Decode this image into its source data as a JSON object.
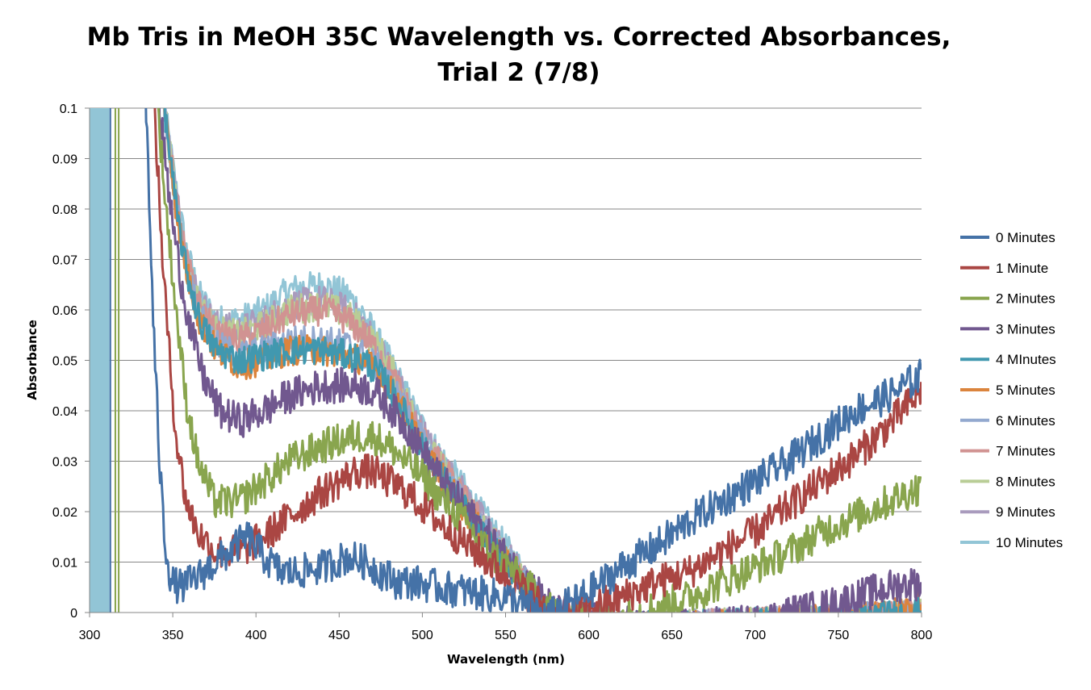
{
  "chart_data": {
    "type": "line",
    "title_line1": "Mb Tris in MeOH 35C Wavelength vs. Corrected Absorbances,",
    "title_line2": "Trial 2 (7/8)",
    "xlabel": "Wavelength (nm)",
    "ylabel": "Absorbance",
    "xlim": [
      300,
      800
    ],
    "ylim": [
      0,
      0.1
    ],
    "x_ticks": [
      "300",
      "350",
      "400",
      "450",
      "500",
      "550",
      "600",
      "650",
      "700",
      "750",
      "800"
    ],
    "y_ticks": [
      "0",
      "0.01",
      "0.02",
      "0.03",
      "0.04",
      "0.05",
      "0.06",
      "0.07",
      "0.08",
      "0.09",
      "0.1"
    ],
    "grid": "horizontal",
    "legend_position": "right",
    "series": [
      {
        "name": "0 Minutes",
        "color": "#4572A7",
        "noise": 0.0035,
        "points": [
          [
            334,
            0.1
          ],
          [
            338,
            0.06
          ],
          [
            342,
            0.03
          ],
          [
            345,
            0.015
          ],
          [
            349,
            0.006
          ],
          [
            355,
            0.005
          ],
          [
            365,
            0.007
          ],
          [
            380,
            0.011
          ],
          [
            395,
            0.015
          ],
          [
            405,
            0.011
          ],
          [
            415,
            0.008
          ],
          [
            425,
            0.008
          ],
          [
            440,
            0.009
          ],
          [
            455,
            0.011
          ],
          [
            465,
            0.01
          ],
          [
            475,
            0.008
          ],
          [
            485,
            0.006
          ],
          [
            495,
            0.006
          ],
          [
            510,
            0.005
          ],
          [
            530,
            0.004
          ],
          [
            550,
            0.003
          ],
          [
            565,
            0.001
          ],
          [
            575,
            -0.001
          ],
          [
            590,
            0.002
          ],
          [
            600,
            0.004
          ],
          [
            620,
            0.009
          ],
          [
            640,
            0.013
          ],
          [
            660,
            0.018
          ],
          [
            680,
            0.022
          ],
          [
            700,
            0.026
          ],
          [
            720,
            0.03
          ],
          [
            740,
            0.035
          ],
          [
            760,
            0.04
          ],
          [
            780,
            0.043
          ],
          [
            800,
            0.047
          ]
        ]
      },
      {
        "name": "1 Minute",
        "color": "#AA4643",
        "noise": 0.0035,
        "points": [
          [
            339,
            0.1
          ],
          [
            343,
            0.075
          ],
          [
            347,
            0.055
          ],
          [
            352,
            0.035
          ],
          [
            358,
            0.022
          ],
          [
            365,
            0.016
          ],
          [
            375,
            0.012
          ],
          [
            390,
            0.012
          ],
          [
            405,
            0.015
          ],
          [
            420,
            0.019
          ],
          [
            440,
            0.024
          ],
          [
            460,
            0.028
          ],
          [
            470,
            0.028
          ],
          [
            480,
            0.026
          ],
          [
            490,
            0.024
          ],
          [
            500,
            0.021
          ],
          [
            510,
            0.018
          ],
          [
            525,
            0.014
          ],
          [
            540,
            0.01
          ],
          [
            555,
            0.006
          ],
          [
            570,
            0.002
          ],
          [
            580,
            -0.001
          ],
          [
            600,
            0.001
          ],
          [
            620,
            0.003
          ],
          [
            640,
            0.006
          ],
          [
            660,
            0.008
          ],
          [
            680,
            0.012
          ],
          [
            700,
            0.016
          ],
          [
            720,
            0.021
          ],
          [
            740,
            0.026
          ],
          [
            760,
            0.031
          ],
          [
            780,
            0.037
          ],
          [
            800,
            0.044
          ]
        ]
      },
      {
        "name": "2 Minutes",
        "color": "#89A54E",
        "noise": 0.0035,
        "points": [
          [
            341,
            0.1
          ],
          [
            346,
            0.08
          ],
          [
            352,
            0.06
          ],
          [
            358,
            0.042
          ],
          [
            365,
            0.03
          ],
          [
            375,
            0.022
          ],
          [
            390,
            0.022
          ],
          [
            405,
            0.026
          ],
          [
            420,
            0.03
          ],
          [
            440,
            0.033
          ],
          [
            460,
            0.035
          ],
          [
            470,
            0.035
          ],
          [
            480,
            0.033
          ],
          [
            490,
            0.03
          ],
          [
            500,
            0.027
          ],
          [
            510,
            0.023
          ],
          [
            525,
            0.018
          ],
          [
            540,
            0.012
          ],
          [
            555,
            0.008
          ],
          [
            570,
            0.003
          ],
          [
            580,
            0.0
          ],
          [
            600,
            -0.001
          ],
          [
            620,
            -0.001
          ],
          [
            640,
            0.001
          ],
          [
            660,
            0.003
          ],
          [
            680,
            0.006
          ],
          [
            700,
            0.009
          ],
          [
            720,
            0.012
          ],
          [
            740,
            0.016
          ],
          [
            760,
            0.019
          ],
          [
            780,
            0.022
          ],
          [
            800,
            0.025
          ]
        ]
      },
      {
        "name": "3 Minutes",
        "color": "#71588F",
        "noise": 0.0035,
        "points": [
          [
            342,
            0.1
          ],
          [
            348,
            0.082
          ],
          [
            354,
            0.068
          ],
          [
            360,
            0.057
          ],
          [
            368,
            0.047
          ],
          [
            378,
            0.04
          ],
          [
            390,
            0.038
          ],
          [
            405,
            0.04
          ],
          [
            420,
            0.043
          ],
          [
            440,
            0.045
          ],
          [
            460,
            0.045
          ],
          [
            470,
            0.044
          ],
          [
            480,
            0.041
          ],
          [
            490,
            0.037
          ],
          [
            500,
            0.032
          ],
          [
            510,
            0.027
          ],
          [
            525,
            0.021
          ],
          [
            540,
            0.015
          ],
          [
            555,
            0.009
          ],
          [
            570,
            0.004
          ],
          [
            580,
            0.0
          ],
          [
            640,
            -0.003
          ],
          [
            700,
            -0.002
          ],
          [
            720,
            0.0
          ],
          [
            740,
            0.001
          ],
          [
            760,
            0.003
          ],
          [
            780,
            0.005
          ],
          [
            800,
            0.006
          ]
        ]
      },
      {
        "name": "4 MInutes",
        "color": "#4198AF",
        "noise": 0.003,
        "points": [
          [
            345,
            0.1
          ],
          [
            352,
            0.08
          ],
          [
            358,
            0.068
          ],
          [
            366,
            0.058
          ],
          [
            376,
            0.052
          ],
          [
            390,
            0.05
          ],
          [
            405,
            0.051
          ],
          [
            420,
            0.052
          ],
          [
            440,
            0.052
          ],
          [
            455,
            0.051
          ],
          [
            465,
            0.05
          ],
          [
            475,
            0.047
          ],
          [
            485,
            0.042
          ],
          [
            495,
            0.036
          ],
          [
            505,
            0.03
          ],
          [
            520,
            0.023
          ],
          [
            535,
            0.016
          ],
          [
            550,
            0.01
          ],
          [
            565,
            0.004
          ],
          [
            575,
            -0.001
          ],
          [
            600,
            -0.003
          ],
          [
            700,
            -0.002
          ],
          [
            760,
            -0.001
          ],
          [
            800,
            0.0
          ]
        ]
      },
      {
        "name": "5 Minutes",
        "color": "#DB843D",
        "noise": 0.003,
        "points": [
          [
            345,
            0.1
          ],
          [
            352,
            0.08
          ],
          [
            358,
            0.068
          ],
          [
            366,
            0.058
          ],
          [
            376,
            0.052
          ],
          [
            390,
            0.049
          ],
          [
            405,
            0.05
          ],
          [
            420,
            0.052
          ],
          [
            440,
            0.052
          ],
          [
            455,
            0.051
          ],
          [
            465,
            0.05
          ],
          [
            475,
            0.047
          ],
          [
            485,
            0.042
          ],
          [
            495,
            0.036
          ],
          [
            505,
            0.03
          ],
          [
            520,
            0.023
          ],
          [
            535,
            0.016
          ],
          [
            550,
            0.01
          ],
          [
            565,
            0.004
          ],
          [
            575,
            -0.001
          ],
          [
            600,
            -0.003
          ],
          [
            700,
            -0.002
          ],
          [
            760,
            -0.001
          ],
          [
            800,
            0.001
          ]
        ]
      },
      {
        "name": "6 Minutes",
        "color": "#93A9CF",
        "noise": 0.003,
        "points": [
          [
            345,
            0.1
          ],
          [
            352,
            0.081
          ],
          [
            358,
            0.069
          ],
          [
            366,
            0.059
          ],
          [
            376,
            0.053
          ],
          [
            390,
            0.051
          ],
          [
            405,
            0.052
          ],
          [
            420,
            0.054
          ],
          [
            440,
            0.054
          ],
          [
            455,
            0.053
          ],
          [
            465,
            0.051
          ],
          [
            475,
            0.048
          ],
          [
            485,
            0.043
          ],
          [
            495,
            0.037
          ],
          [
            505,
            0.031
          ],
          [
            520,
            0.024
          ],
          [
            535,
            0.017
          ],
          [
            550,
            0.011
          ],
          [
            565,
            0.005
          ],
          [
            575,
            -0.001
          ],
          [
            600,
            -0.003
          ],
          [
            700,
            -0.002
          ],
          [
            760,
            -0.001
          ],
          [
            800,
            0.0
          ]
        ]
      },
      {
        "name": "7 Minutes",
        "color": "#D19392",
        "noise": 0.003,
        "points": [
          [
            345,
            0.1
          ],
          [
            352,
            0.082
          ],
          [
            358,
            0.07
          ],
          [
            366,
            0.061
          ],
          [
            376,
            0.055
          ],
          [
            390,
            0.054
          ],
          [
            405,
            0.056
          ],
          [
            420,
            0.059
          ],
          [
            440,
            0.06
          ],
          [
            455,
            0.058
          ],
          [
            465,
            0.055
          ],
          [
            475,
            0.051
          ],
          [
            485,
            0.045
          ],
          [
            495,
            0.038
          ],
          [
            505,
            0.032
          ],
          [
            520,
            0.025
          ],
          [
            535,
            0.018
          ],
          [
            550,
            0.011
          ],
          [
            565,
            0.005
          ],
          [
            575,
            -0.001
          ],
          [
            600,
            -0.003
          ],
          [
            700,
            -0.002
          ],
          [
            760,
            -0.001
          ],
          [
            800,
            0.0
          ]
        ]
      },
      {
        "name": "8 Minutes",
        "color": "#B9CD96",
        "noise": 0.003,
        "points": [
          [
            345,
            0.1
          ],
          [
            352,
            0.082
          ],
          [
            358,
            0.07
          ],
          [
            366,
            0.061
          ],
          [
            376,
            0.056
          ],
          [
            390,
            0.055
          ],
          [
            405,
            0.057
          ],
          [
            420,
            0.06
          ],
          [
            440,
            0.061
          ],
          [
            455,
            0.059
          ],
          [
            465,
            0.056
          ],
          [
            475,
            0.052
          ],
          [
            485,
            0.046
          ],
          [
            495,
            0.039
          ],
          [
            505,
            0.032
          ],
          [
            520,
            0.025
          ],
          [
            535,
            0.018
          ],
          [
            550,
            0.011
          ],
          [
            565,
            0.005
          ],
          [
            575,
            -0.001
          ],
          [
            600,
            -0.003
          ],
          [
            700,
            -0.002
          ],
          [
            760,
            -0.001
          ],
          [
            800,
            0.0
          ]
        ]
      },
      {
        "name": "9 Minutes",
        "color": "#A99BBD",
        "noise": 0.003,
        "points": [
          [
            345,
            0.1
          ],
          [
            352,
            0.083
          ],
          [
            358,
            0.071
          ],
          [
            366,
            0.062
          ],
          [
            376,
            0.057
          ],
          [
            390,
            0.056
          ],
          [
            405,
            0.058
          ],
          [
            420,
            0.061
          ],
          [
            440,
            0.062
          ],
          [
            455,
            0.06
          ],
          [
            465,
            0.057
          ],
          [
            475,
            0.052
          ],
          [
            485,
            0.046
          ],
          [
            495,
            0.039
          ],
          [
            505,
            0.033
          ],
          [
            520,
            0.026
          ],
          [
            535,
            0.019
          ],
          [
            550,
            0.012
          ],
          [
            565,
            0.005
          ],
          [
            575,
            -0.001
          ],
          [
            600,
            -0.003
          ],
          [
            700,
            -0.002
          ],
          [
            760,
            -0.001
          ],
          [
            800,
            0.0
          ]
        ]
      },
      {
        "name": "10 Minutes",
        "color": "#92C5D6",
        "noise": 0.003,
        "points": [
          [
            345,
            0.1
          ],
          [
            352,
            0.084
          ],
          [
            358,
            0.072
          ],
          [
            366,
            0.063
          ],
          [
            376,
            0.058
          ],
          [
            390,
            0.058
          ],
          [
            405,
            0.06
          ],
          [
            420,
            0.064
          ],
          [
            440,
            0.065
          ],
          [
            455,
            0.063
          ],
          [
            465,
            0.059
          ],
          [
            475,
            0.053
          ],
          [
            485,
            0.047
          ],
          [
            495,
            0.04
          ],
          [
            505,
            0.034
          ],
          [
            520,
            0.027
          ],
          [
            535,
            0.02
          ],
          [
            550,
            0.013
          ],
          [
            565,
            0.006
          ],
          [
            575,
            -0.001
          ],
          [
            600,
            -0.003
          ],
          [
            700,
            -0.002
          ],
          [
            760,
            -0.001
          ],
          [
            800,
            0.0
          ]
        ]
      }
    ]
  }
}
